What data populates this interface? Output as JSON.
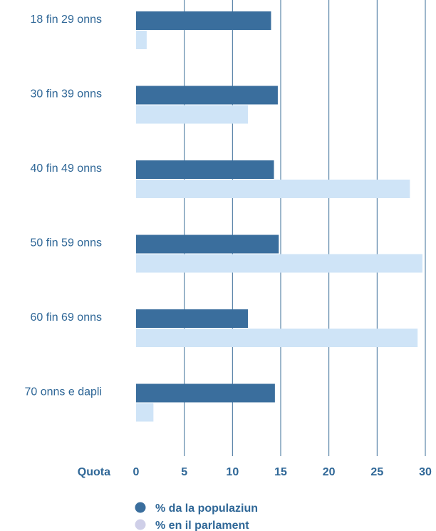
{
  "chart_data": {
    "type": "bar",
    "orientation": "horizontal",
    "categories": [
      "18 fin 29 onns",
      "30 fin 39 onns",
      "40 fin 49 onns",
      "50 fin 59 onns",
      "60 fin 69 onns",
      "70 onns e dapli"
    ],
    "series": [
      {
        "name": "% da la populaziun",
        "values": [
          14.0,
          14.7,
          14.3,
          14.8,
          11.6,
          14.4
        ],
        "color": "#3a6e9d"
      },
      {
        "name": "% en il parlament",
        "values": [
          1.1,
          11.6,
          28.4,
          29.7,
          29.2,
          1.8
        ],
        "color": "#cfe4f7"
      }
    ],
    "xlabel": "Quota",
    "xlim": [
      0,
      30
    ],
    "xticks": [
      0,
      5,
      10,
      15,
      20,
      25,
      30
    ],
    "grid": true,
    "legend_placement": "bottom",
    "legend_marker_colors": [
      "#3a6e9d",
      "#cfcfe8"
    ]
  }
}
